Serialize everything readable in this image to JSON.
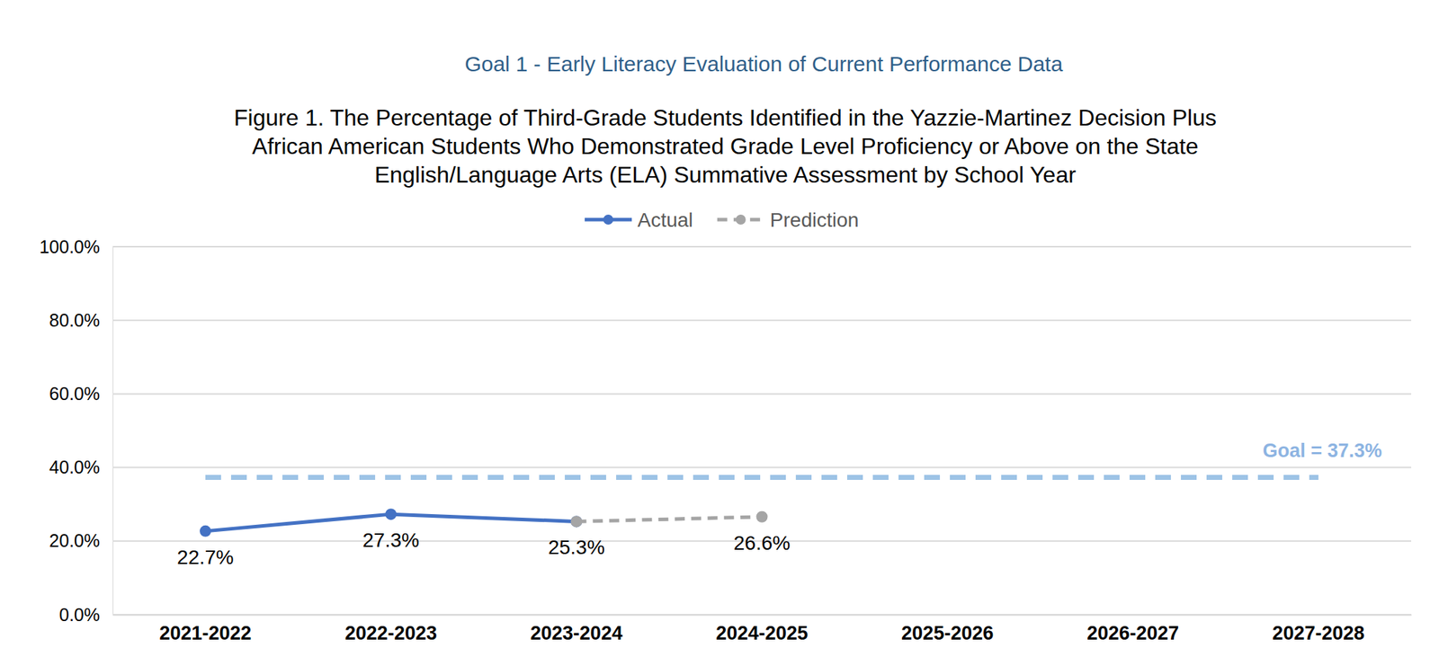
{
  "chart_data": {
    "type": "line",
    "header": "Goal 1 -  Early Literacy Evaluation of Current Performance Data",
    "title": [
      "Figure 1. The Percentage of Third-Grade Students Identified in the Yazzie-Martinez Decision Plus",
      "African American Students Who Demonstrated Grade Level Proficiency or Above on the State",
      "English/Language Arts (ELA) Summative Assessment by School Year"
    ],
    "categories": [
      "2021-2022",
      "2022-2023",
      "2023-2024",
      "2024-2025",
      "2025-2026",
      "2026-2027",
      "2027-2028"
    ],
    "series": [
      {
        "name": "Actual",
        "color": "#4472c4",
        "line_style": "solid",
        "marker": "circle",
        "values": [
          22.7,
          27.3,
          25.3,
          null,
          null,
          null,
          null
        ],
        "value_labels": [
          "22.7%",
          "27.3%",
          "25.3%",
          null,
          null,
          null,
          null
        ]
      },
      {
        "name": "Prediction",
        "color": "#a5a5a5",
        "line_style": "dashed",
        "marker": "circle",
        "values": [
          null,
          null,
          25.3,
          26.6,
          null,
          null,
          null
        ],
        "value_labels": [
          null,
          null,
          null,
          "26.6%",
          null,
          null,
          null
        ]
      }
    ],
    "goal": {
      "value": 37.3,
      "label": "Goal = 37.3%",
      "color": "#9dc3e6"
    },
    "ylim": [
      0,
      100
    ],
    "yticks": [
      {
        "value": 0,
        "label": "0.0%"
      },
      {
        "value": 20,
        "label": "20.0%"
      },
      {
        "value": 40,
        "label": "40.0%"
      },
      {
        "value": 60,
        "label": "60.0%"
      },
      {
        "value": 80,
        "label": "80.0%"
      },
      {
        "value": 100,
        "label": "100.0%"
      }
    ],
    "grid": true,
    "legend": "top",
    "data_labels": true
  }
}
